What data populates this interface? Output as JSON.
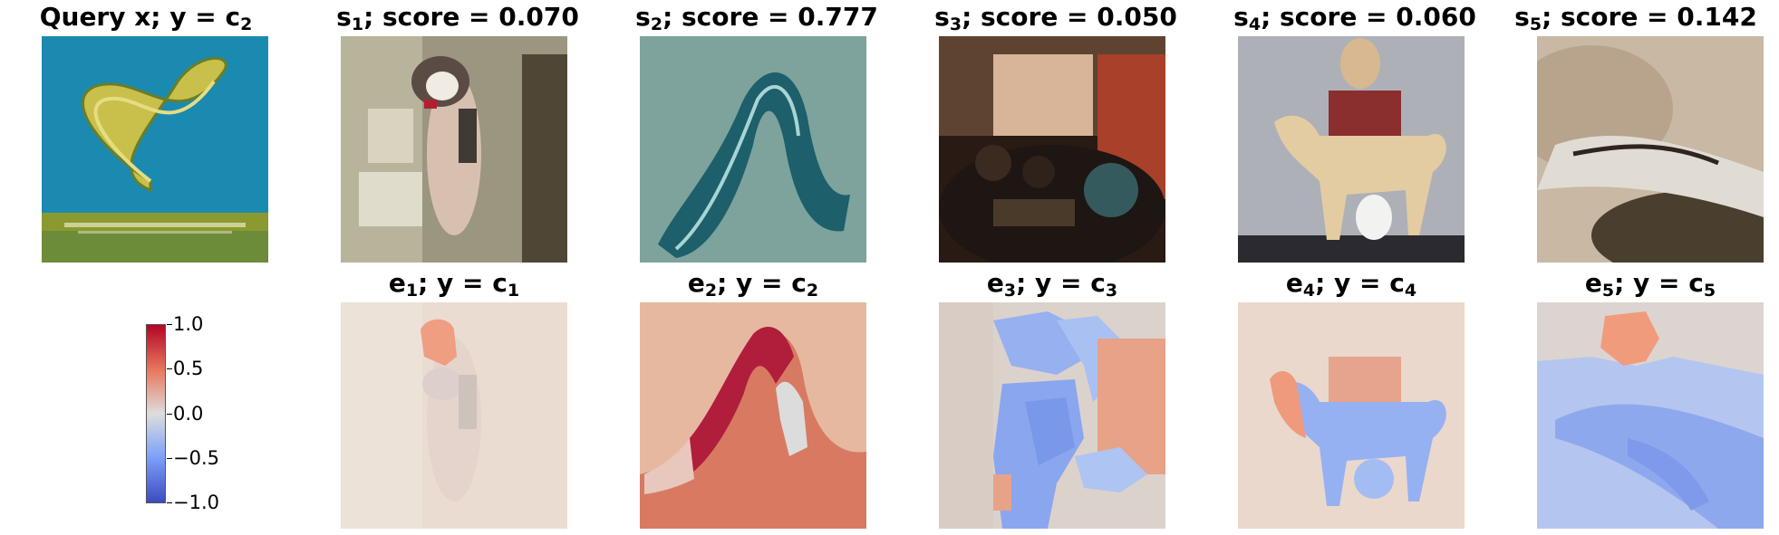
{
  "query": {
    "title_main": "Query x; y",
    "title_eq": " = c",
    "title_sub": "2"
  },
  "top_row": [
    {
      "sym": "s",
      "sub": "1",
      "suffix": "; score = 0.070"
    },
    {
      "sym": "s",
      "sub": "2",
      "suffix": "; score = 0.777"
    },
    {
      "sym": "s",
      "sub": "3",
      "suffix": "; score = 0.050"
    },
    {
      "sym": "s",
      "sub": "4",
      "suffix": "; score = 0.060"
    },
    {
      "sym": "s",
      "sub": "5",
      "suffix": "; score = 0.142"
    }
  ],
  "bottom_row": [
    {
      "sym": "e",
      "sub": "1",
      "mid": "; y = c",
      "csub": "1"
    },
    {
      "sym": "e",
      "sub": "2",
      "mid": "; y = c",
      "csub": "2"
    },
    {
      "sym": "e",
      "sub": "3",
      "mid": "; y = c",
      "csub": "3"
    },
    {
      "sym": "e",
      "sub": "4",
      "mid": "; y = c",
      "csub": "4"
    },
    {
      "sym": "e",
      "sub": "5",
      "mid": "; y = c",
      "csub": "5"
    }
  ],
  "colorbar": {
    "ticks": [
      "1.0",
      "0.5",
      "0.0",
      "−0.5",
      "−1.0"
    ],
    "max": 1.0,
    "min": -1.0,
    "colormap": "coolwarm"
  },
  "colors": {
    "positive": "#b40426",
    "neutral": "#dddddd",
    "negative": "#3b4cc0"
  }
}
